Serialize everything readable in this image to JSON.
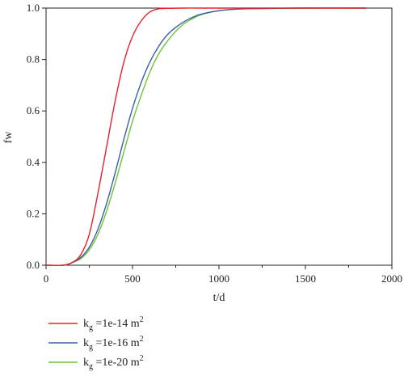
{
  "chart_data": {
    "type": "line",
    "title": "",
    "xlabel": "t/d",
    "ylabel": "fw",
    "xlim": [
      0,
      2000
    ],
    "ylim": [
      0,
      1.0
    ],
    "xticks": [
      0,
      500,
      1000,
      1500,
      2000
    ],
    "yticks": [
      0.0,
      0.2,
      0.4,
      0.6,
      0.8,
      1.0
    ],
    "xtick_labels": [
      "0",
      "500",
      "1000",
      "1500",
      "2000"
    ],
    "ytick_labels": [
      "0.0",
      "0.2",
      "0.4",
      "0.6",
      "0.8",
      "1.0"
    ],
    "grid": false,
    "legend_placement": "bottom-left, below plot",
    "series": [
      {
        "legend": {
          "base": "k",
          "sub": "g",
          "rest": " =1e-14 m",
          "sup": "2"
        },
        "color": "#e8202a",
        "x": [
          0,
          100,
          150,
          200,
          250,
          300,
          350,
          400,
          450,
          500,
          550,
          600,
          650,
          700,
          800,
          1000,
          1500,
          1850
        ],
        "y": [
          0,
          0,
          0.01,
          0.04,
          0.12,
          0.28,
          0.46,
          0.64,
          0.79,
          0.89,
          0.95,
          0.985,
          0.997,
          0.999,
          1.0,
          1.0,
          1.0,
          1.0
        ]
      },
      {
        "legend": {
          "base": "k",
          "sub": "g",
          "rest": " =1e-16 m",
          "sup": "2"
        },
        "color": "#3a5fa8",
        "x": [
          0,
          100,
          150,
          200,
          250,
          300,
          350,
          400,
          450,
          500,
          550,
          600,
          650,
          700,
          750,
          800,
          850,
          900,
          1000,
          1100,
          1200,
          1500,
          1850
        ],
        "y": [
          0,
          0,
          0.01,
          0.03,
          0.07,
          0.14,
          0.24,
          0.36,
          0.49,
          0.61,
          0.71,
          0.79,
          0.85,
          0.895,
          0.925,
          0.948,
          0.965,
          0.977,
          0.99,
          0.996,
          0.998,
          1.0,
          1.0
        ]
      },
      {
        "legend": {
          "base": "k",
          "sub": "g",
          "rest": " =1e-20 m",
          "sup": "2"
        },
        "color": "#6cc43a",
        "x": [
          0,
          100,
          150,
          200,
          250,
          300,
          350,
          400,
          450,
          500,
          550,
          600,
          650,
          700,
          750,
          800,
          850,
          900,
          1000,
          1100,
          1200,
          1500,
          1850
        ],
        "y": [
          0,
          0,
          0.01,
          0.025,
          0.06,
          0.12,
          0.21,
          0.32,
          0.44,
          0.56,
          0.66,
          0.75,
          0.82,
          0.87,
          0.91,
          0.94,
          0.96,
          0.975,
          0.99,
          0.996,
          0.998,
          1.0,
          1.0
        ]
      }
    ]
  }
}
